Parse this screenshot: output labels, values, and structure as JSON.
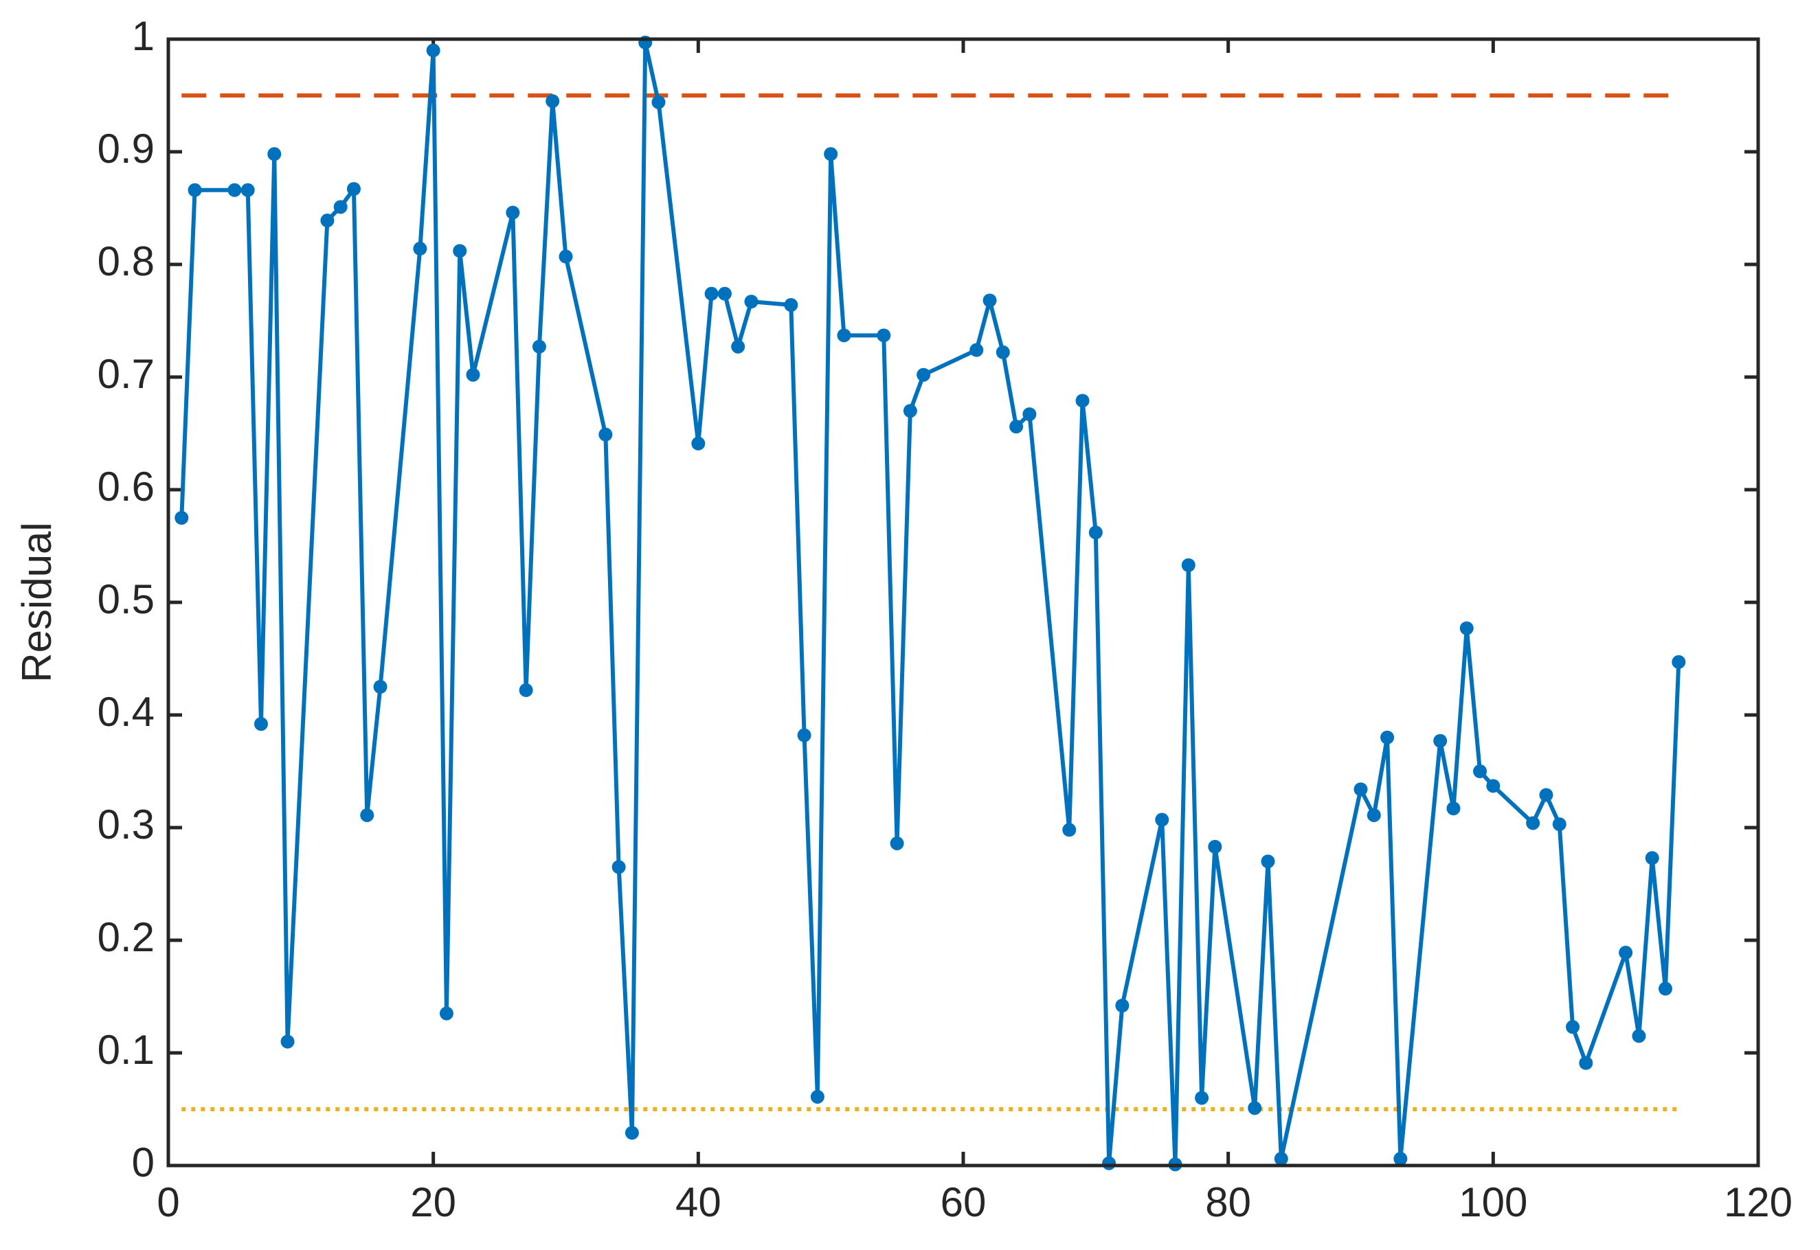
{
  "chart_data": {
    "type": "line",
    "ylabel": "Residual",
    "x": [
      1,
      2,
      5,
      6,
      7,
      8,
      9,
      12,
      13,
      14,
      15,
      16,
      19,
      20,
      21,
      22,
      23,
      26,
      27,
      28,
      29,
      30,
      33,
      34,
      35,
      36,
      37,
      40,
      41,
      42,
      43,
      44,
      47,
      48,
      49,
      50,
      51,
      54,
      55,
      56,
      57,
      61,
      62,
      63,
      64,
      65,
      68,
      69,
      70,
      71,
      72,
      75,
      76,
      77,
      78,
      79,
      82,
      83,
      84,
      90,
      91,
      92,
      93,
      96,
      97,
      98,
      99,
      100,
      103,
      104,
      105,
      106,
      107,
      110,
      111,
      112,
      113,
      114
    ],
    "series": [
      {
        "color": "#0072bd",
        "values": [
          0.575,
          0.866,
          0.866,
          0.866,
          0.392,
          0.898,
          0.11,
          0.839,
          0.851,
          0.867,
          0.311,
          0.425,
          0.814,
          0.99,
          0.135,
          0.812,
          0.702,
          0.846,
          0.422,
          0.727,
          0.945,
          0.807,
          0.649,
          0.265,
          0.029,
          0.997,
          0.944,
          0.641,
          0.774,
          0.774,
          0.727,
          0.767,
          0.764,
          0.382,
          0.061,
          0.898,
          0.737,
          0.737,
          0.286,
          0.67,
          0.702,
          0.724,
          0.768,
          0.722,
          0.656,
          0.667,
          0.298,
          0.679,
          0.562,
          0.002,
          0.142,
          0.307,
          0.001,
          0.533,
          0.06,
          0.283,
          0.051,
          0.27,
          0.006,
          0.334,
          0.311,
          0.38,
          0.006,
          0.377,
          0.317,
          0.477,
          0.35,
          0.337,
          0.304,
          0.329,
          0.303,
          0.123,
          0.091,
          0.189,
          0.115,
          0.273,
          0.157,
          0.447
        ]
      }
    ],
    "reference_lines": [
      {
        "value": 0.95,
        "color": "#d95319",
        "style": "dashed"
      },
      {
        "value": 0.05,
        "color": "#edb120",
        "style": "dotted"
      }
    ],
    "xlim": [
      0,
      120
    ],
    "xticks": [
      0,
      20,
      40,
      60,
      80,
      100,
      120
    ],
    "ylim": [
      0,
      1
    ],
    "yticks": [
      0,
      0.1,
      0.2,
      0.3,
      0.4,
      0.5,
      0.6,
      0.7,
      0.8,
      0.9,
      1
    ]
  }
}
